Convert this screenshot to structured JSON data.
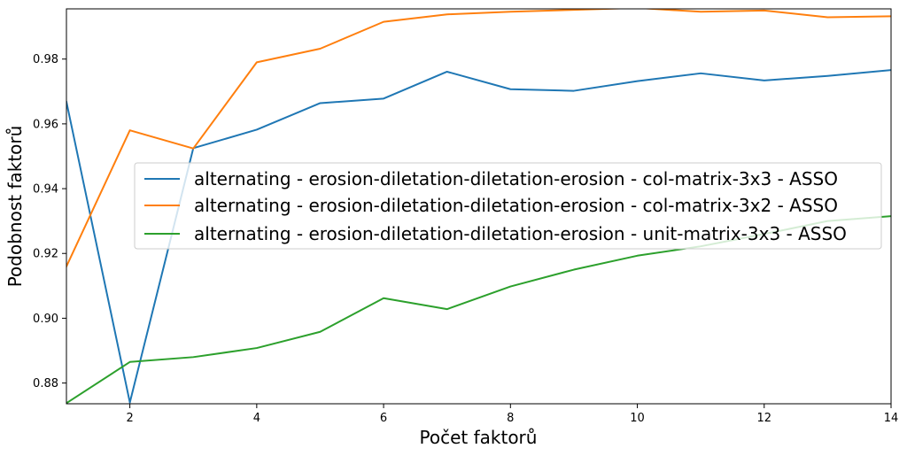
{
  "chart_data": {
    "type": "line",
    "xlabel": "Počet faktorů",
    "ylabel": "Podobnost faktorů",
    "xlim": [
      1,
      14
    ],
    "ylim": [
      0.8736,
      0.9955
    ],
    "xticks": [
      2,
      4,
      6,
      8,
      10,
      12,
      14
    ],
    "yticks": [
      0.88,
      0.9,
      0.92,
      0.94,
      0.96,
      0.98
    ],
    "ytick_labels": [
      "0.88",
      "0.90",
      "0.92",
      "0.94",
      "0.96",
      "0.98"
    ],
    "grid": false,
    "legend_position": "center-right",
    "x": [
      1,
      2,
      3,
      4,
      5,
      6,
      7,
      8,
      9,
      10,
      11,
      12,
      13,
      14
    ],
    "series": [
      {
        "name": "alternating - erosion-diletation-diletation-erosion - col-matrix-3x3 - ASSO",
        "color": "#1f77b4",
        "values": [
          0.9668,
          0.874,
          0.9525,
          0.9582,
          0.9664,
          0.9678,
          0.9761,
          0.9707,
          0.9702,
          0.9732,
          0.9756,
          0.9734,
          0.9748,
          0.9766
        ]
      },
      {
        "name": "alternating - erosion-diletation-diletation-erosion - col-matrix-3x2 - ASSO",
        "color": "#ff7f0e",
        "values": [
          0.916,
          0.958,
          0.9524,
          0.979,
          0.9832,
          0.9915,
          0.9938,
          0.9946,
          0.9952,
          0.9958,
          0.9946,
          0.995,
          0.9929,
          0.9932
        ]
      },
      {
        "name": "alternating - erosion-diletation-diletation-erosion - unit-matrix-3x3 - ASSO",
        "color": "#2ca02c",
        "values": [
          0.8738,
          0.8865,
          0.888,
          0.8908,
          0.8958,
          0.9062,
          0.9028,
          0.9098,
          0.915,
          0.9193,
          0.9222,
          0.926,
          0.93,
          0.9315
        ]
      }
    ]
  }
}
